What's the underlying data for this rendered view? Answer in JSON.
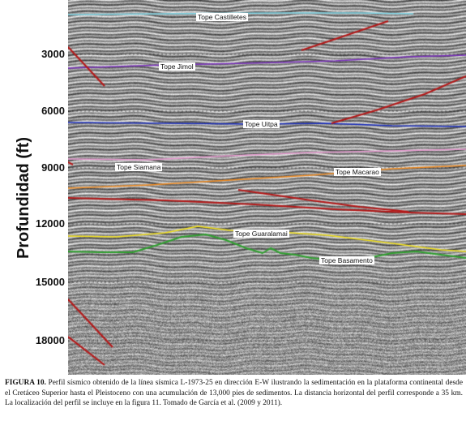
{
  "figure": {
    "y_axis_label": "Profundidad (ft)",
    "ticks": [
      "3000",
      "6000",
      "9000",
      "12000",
      "15000",
      "18000"
    ],
    "horizons": [
      {
        "name": "Tope Castilletes",
        "color": "#7fd6e6"
      },
      {
        "name": "Tope Jimol",
        "color": "#7b2fbf"
      },
      {
        "name": "Tope Uitpa",
        "color": "#1c2fc0"
      },
      {
        "name": "Tope Siamana",
        "color": "#e79ad0"
      },
      {
        "name": "Tope Macarao",
        "color": "#f08a1e"
      },
      {
        "name": "Tope Guaralamai",
        "color": "#f2e01a"
      },
      {
        "name": "Tope Basamento",
        "color": "#2fa02f"
      }
    ],
    "fault_color": "#b41818"
  },
  "caption": {
    "label": "FIGURA 10.",
    "text": " Perfil sísmico obtenido de la línea sísmica L-1973-25 en dirección E-W ilustrando la sedimentación en la plataforma continental desde el Cretáceo Superior hasta el Pleistoceno con una acumulación de 13,000 pies de sedimentos. La distancia horizontal del perfil corresponde a 35 km. La localización del perfil se incluye en la figura 11. Tomado de García et al. (2009 y 2011)."
  }
}
